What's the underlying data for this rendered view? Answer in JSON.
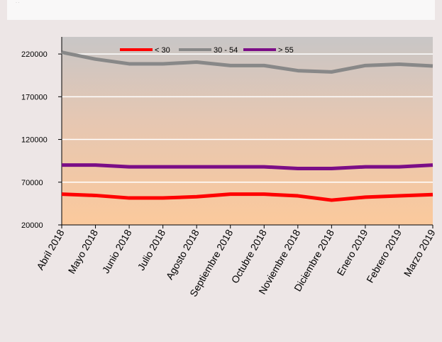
{
  "header": {
    "text": "· ·"
  },
  "chart_data": {
    "type": "line",
    "categories": [
      "Abril 2018",
      "Mayo 2018",
      "Junio 2018",
      "Julio 2018",
      "Agosto 2018",
      "Septiembre 2018",
      "Octubre 2018",
      "Noviembre 2018",
      "Diciembre 2018",
      "Enero 2019",
      "Febrero 2019",
      "Marzo 2019"
    ],
    "series": [
      {
        "name": "< 30",
        "color": "#ff0000",
        "values": [
          56000,
          54500,
          51500,
          51500,
          53000,
          56000,
          56000,
          54000,
          49000,
          52500,
          54000,
          55500
        ]
      },
      {
        "name": "30 - 54",
        "color": "#888888",
        "values": [
          222000,
          214000,
          208500,
          208500,
          210500,
          206500,
          206500,
          200500,
          199000,
          206500,
          208000,
          206000
        ]
      },
      {
        "name": "> 55",
        "color": "#7b0e87",
        "values": [
          90000,
          90000,
          88000,
          88000,
          88000,
          88000,
          88000,
          86000,
          86000,
          88000,
          88000,
          90000
        ]
      }
    ],
    "yticks": [
      "20000",
      "70000",
      "120000",
      "170000",
      "220000"
    ],
    "ylim": [
      20000,
      240000
    ],
    "grid": true,
    "legend": "top",
    "background": {
      "top": "#c8c6c6",
      "bottom": "#fbc99c"
    }
  }
}
